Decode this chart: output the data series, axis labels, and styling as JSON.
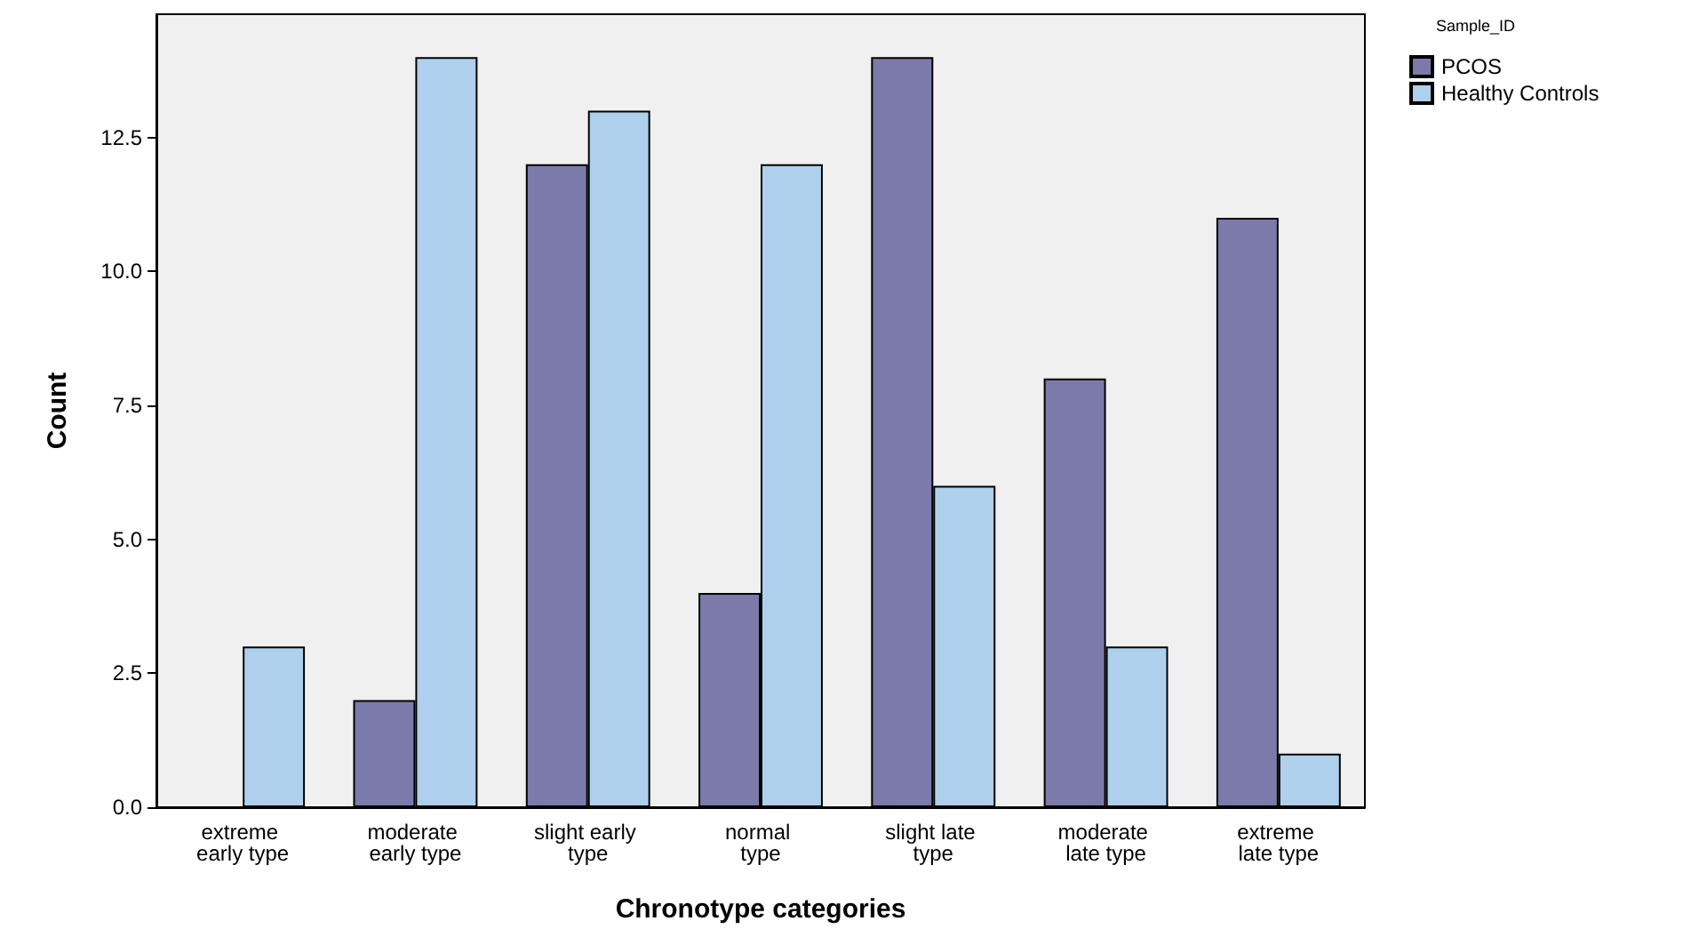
{
  "chart_data": {
    "type": "bar",
    "categories": [
      "extreme early type",
      "moderate early type",
      "slight early type",
      "normal type",
      "slight late type",
      "moderate late type",
      "extreme late type"
    ],
    "series": [
      {
        "name": "PCOS",
        "color": "#7b7aab",
        "values": [
          null,
          2,
          12,
          4,
          14,
          8,
          11
        ]
      },
      {
        "name": "Healthy Controls",
        "color": "#aed0ec",
        "values": [
          3,
          14,
          13,
          12,
          6,
          3,
          1
        ]
      }
    ],
    "xlabel": "Chronotype categories",
    "ylabel": "Count",
    "legend_title": "Sample_ID",
    "ylim": [
      0,
      14.8
    ],
    "yticks": [
      {
        "value": 0,
        "label": "0.0"
      },
      2.5,
      {
        "value": 5,
        "label": "5.0"
      },
      7.5,
      {
        "value": 10,
        "label": "10.0"
      },
      12.5
    ],
    "grid": false,
    "legend": "top right"
  }
}
